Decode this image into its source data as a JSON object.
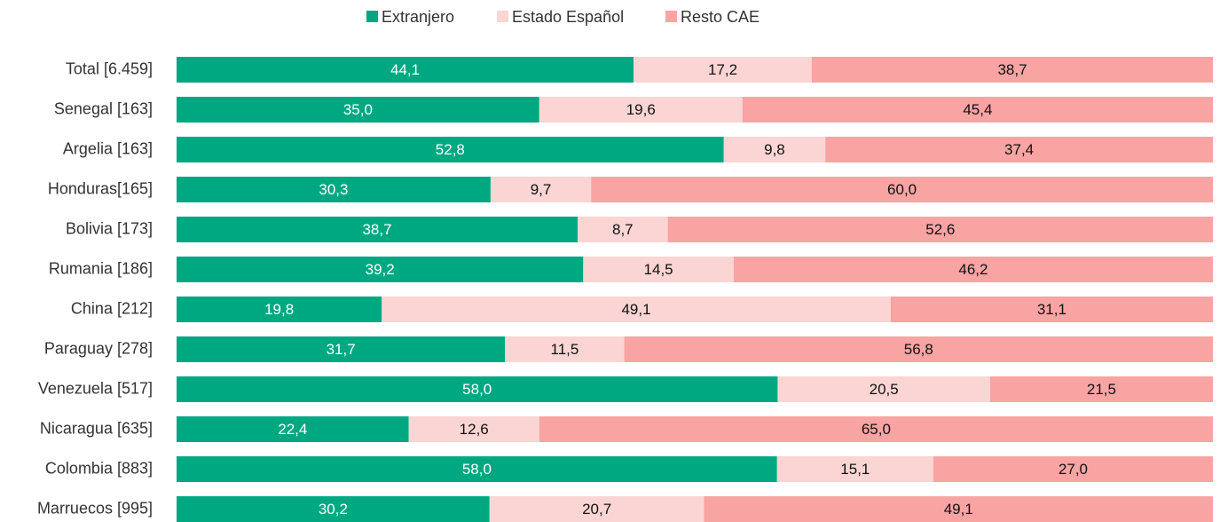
{
  "chart_data": {
    "type": "stacked-bar-horizontal-100",
    "categories": [
      "Total [6.459]",
      "Senegal [163]",
      "Argelia [163]",
      "Honduras[165]",
      "Bolivia [173]",
      "Rumania [186]",
      "China [212]",
      "Paraguay [278]",
      "Venezuela [517]",
      "Nicaragua [635]",
      "Colombia [883]",
      "Marruecos [995]"
    ],
    "series": [
      {
        "name": "Extranjero",
        "color": "#00a882",
        "values": [
          44.1,
          35.0,
          52.8,
          30.3,
          38.7,
          39.2,
          19.8,
          31.7,
          58.0,
          22.4,
          58.0,
          30.2
        ],
        "value_labels": [
          "44,1",
          "35,0",
          "52,8",
          "30,3",
          "38,7",
          "39,2",
          "19,8",
          "31,7",
          "58,0",
          "22,4",
          "58,0",
          "30,2"
        ]
      },
      {
        "name": "Estado Español",
        "color": "#fad5d3",
        "values": [
          17.2,
          19.6,
          9.8,
          9.7,
          8.7,
          14.5,
          49.1,
          11.5,
          20.5,
          12.6,
          15.1,
          20.7
        ],
        "value_labels": [
          "17,2",
          "19,6",
          "9,8",
          "9,7",
          "8,7",
          "14,5",
          "49,1",
          "11,5",
          "20,5",
          "12,6",
          "15,1",
          "20,7"
        ]
      },
      {
        "name": "Resto CAE",
        "color": "#f8a4a3",
        "values": [
          38.7,
          45.4,
          37.4,
          60.0,
          52.6,
          46.2,
          31.1,
          56.8,
          21.5,
          65.0,
          27.0,
          49.1
        ],
        "value_labels": [
          "38,7",
          "45,4",
          "37,4",
          "60,0",
          "52,6",
          "46,2",
          "31,1",
          "56,8",
          "21,5",
          "65,0",
          "27,0",
          "49,1"
        ]
      }
    ],
    "legend": "top"
  }
}
